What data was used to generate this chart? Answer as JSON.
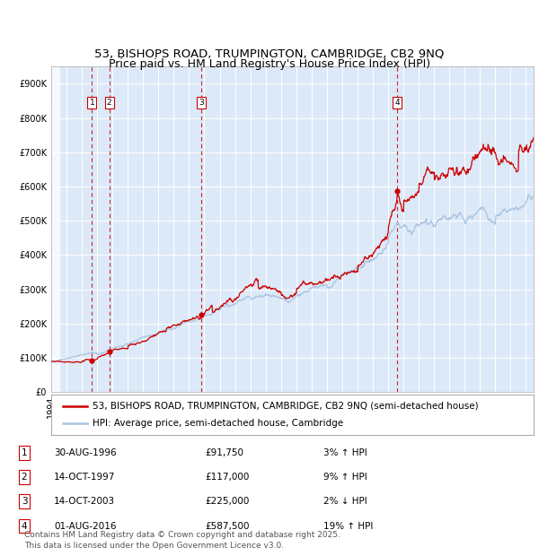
{
  "title_line1": "53, BISHOPS ROAD, TRUMPINGTON, CAMBRIDGE, CB2 9NQ",
  "title_line2": "Price paid vs. HM Land Registry's House Price Index (HPI)",
  "ylim": [
    0,
    950000
  ],
  "xlim_start": 1994.0,
  "xlim_end": 2025.5,
  "yticks": [
    0,
    100000,
    200000,
    300000,
    400000,
    500000,
    600000,
    700000,
    800000,
    900000
  ],
  "ytick_labels": [
    "£0",
    "£100K",
    "£200K",
    "£300K",
    "£400K",
    "£500K",
    "£600K",
    "£700K",
    "£800K",
    "£900K"
  ],
  "background_color": "#dce9f8",
  "grid_color": "#ffffff",
  "sale_color": "#cc0000",
  "hpi_color": "#aac4e0",
  "vline_color": "#cc0000",
  "transactions": [
    {
      "num": 1,
      "date_x": 1996.66,
      "price": 91750,
      "label": "1"
    },
    {
      "num": 2,
      "date_x": 1997.79,
      "price": 117000,
      "label": "2"
    },
    {
      "num": 3,
      "date_x": 2003.79,
      "price": 225000,
      "label": "3"
    },
    {
      "num": 4,
      "date_x": 2016.58,
      "price": 587500,
      "label": "4"
    }
  ],
  "legend_entries": [
    {
      "label": "53, BISHOPS ROAD, TRUMPINGTON, CAMBRIDGE, CB2 9NQ (semi-detached house)",
      "color": "#cc0000"
    },
    {
      "label": "HPI: Average price, semi-detached house, Cambridge",
      "color": "#aac4e0"
    }
  ],
  "table_rows": [
    {
      "num": "1",
      "date": "30-AUG-1996",
      "price": "£91,750",
      "hpi": "3% ↑ HPI"
    },
    {
      "num": "2",
      "date": "14-OCT-1997",
      "price": "£117,000",
      "hpi": "9% ↑ HPI"
    },
    {
      "num": "3",
      "date": "14-OCT-2003",
      "price": "£225,000",
      "hpi": "2% ↓ HPI"
    },
    {
      "num": "4",
      "date": "01-AUG-2016",
      "price": "£587,500",
      "hpi": "19% ↑ HPI"
    }
  ],
  "footnote": "Contains HM Land Registry data © Crown copyright and database right 2025.\nThis data is licensed under the Open Government Licence v3.0.",
  "title_fontsize": 9.5,
  "tick_fontsize": 7,
  "legend_fontsize": 7.5,
  "table_fontsize": 7.5,
  "footnote_fontsize": 6.5
}
